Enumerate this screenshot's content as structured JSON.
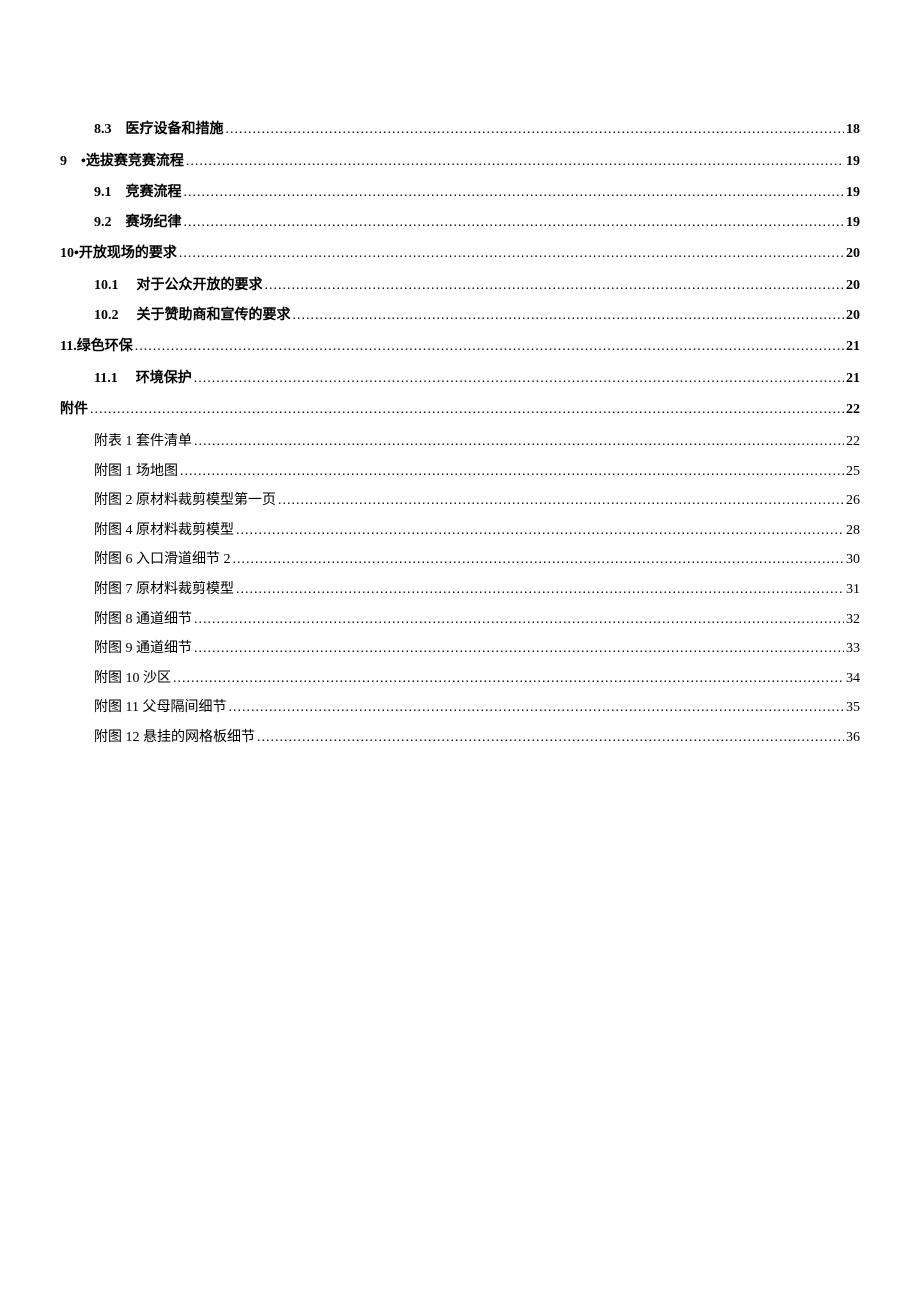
{
  "toc": {
    "entries": [
      {
        "level": "l2",
        "num": "8.3",
        "label": "医疗设备和措施",
        "page": "18"
      },
      {
        "level": "l1",
        "num": "9",
        "label": "•选拔赛竞赛流程",
        "page": "19"
      },
      {
        "level": "l2",
        "num": "9.1",
        "label": "竞赛流程",
        "page": "19"
      },
      {
        "level": "l2",
        "num": "9.2",
        "label": "赛场纪律",
        "page": "19"
      },
      {
        "level": "l1",
        "num": "",
        "label": "10•开放现场的要求",
        "page": "20"
      },
      {
        "level": "l2",
        "num": "10.1",
        "label": "对于公众开放的要求",
        "page": "20"
      },
      {
        "level": "l2",
        "num": "10.2",
        "label": "关于赞助商和宣传的要求",
        "page": "20"
      },
      {
        "level": "l1",
        "num": "",
        "label": "11.绿色环保",
        "page": "21"
      },
      {
        "level": "l2",
        "num": "11.1",
        "label": "环境保护",
        "page": "21"
      },
      {
        "level": "l1",
        "num": "",
        "label": "附件",
        "page": "22"
      },
      {
        "level": "l3",
        "num": "",
        "label": "附表 1 套件清单",
        "page": "22"
      },
      {
        "level": "l3",
        "num": "",
        "label": "附图 1 场地图",
        "page": "25"
      },
      {
        "level": "l3",
        "num": "",
        "label": "附图 2 原材料裁剪模型第一页",
        "page": "26"
      },
      {
        "level": "l3",
        "num": "",
        "label": "附图 4 原材料裁剪模型",
        "page": "28"
      },
      {
        "level": "l3",
        "num": "",
        "label": "附图 6 入口滑道细节 2",
        "page": "30"
      },
      {
        "level": "l3",
        "num": "",
        "label": "附图 7 原材料裁剪模型",
        "page": "31"
      },
      {
        "level": "l3",
        "num": "",
        "label": "附图 8 通道细节",
        "page": "32"
      },
      {
        "level": "l3",
        "num": "",
        "label": "附图 9 通道细节",
        "page": "33"
      },
      {
        "level": "l3",
        "num": "",
        "label": "附图 10 沙区",
        "page": "34"
      },
      {
        "level": "l3",
        "num": "",
        "label": "附图 11 父母隔间细节",
        "page": "35"
      },
      {
        "level": "l3",
        "num": "",
        "label": "附图 12 悬挂的网格板细节",
        "page": "36"
      }
    ]
  }
}
